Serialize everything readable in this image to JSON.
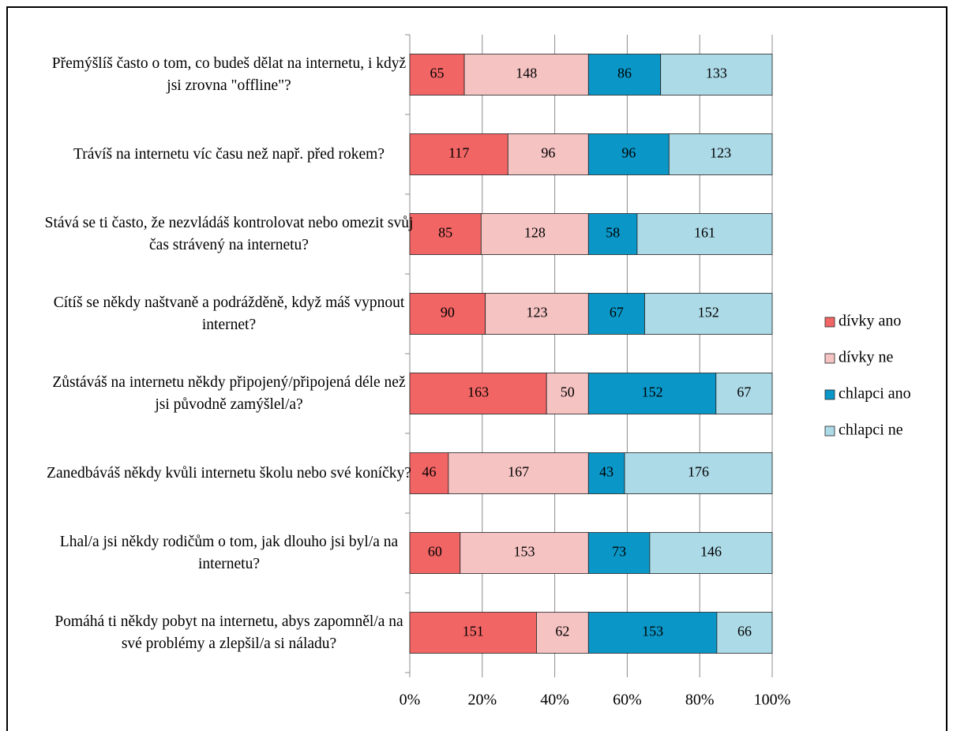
{
  "chart_data": {
    "type": "bar",
    "orientation": "horizontal",
    "stacked": "percent",
    "categories": [
      "Přemýšlíš často o tom, co budeš dělat na internetu, i když jsi zrovna \"offline\"?",
      "Trávíš na internetu víc času než např. před rokem?",
      "Stává se ti často, že nezvládáš kontrolovat nebo omezit svůj čas strávený na internetu?",
      "Cítíš se někdy naštvaně a podrážděně, když máš vypnout internet?",
      "Zůstáváš na internetu někdy připojený/připojená déle než jsi původně zamýšlel/a?",
      "Zanedbáváš někdy kvůli internetu školu nebo své koníčky?",
      "Lhal/a jsi někdy rodičům o tom, jak dlouho jsi byl/a na internetu?",
      "Pomáhá ti někdy pobyt na internetu, abys zapomněl/a na své problémy a zlepšil/a si náladu?"
    ],
    "series": [
      {
        "name": "dívky ano",
        "color": "#f26565",
        "values": [
          65,
          117,
          85,
          90,
          163,
          46,
          60,
          151
        ]
      },
      {
        "name": "dívky ne",
        "color": "#f6c3c3",
        "values": [
          148,
          96,
          128,
          123,
          50,
          167,
          153,
          62
        ]
      },
      {
        "name": "chlapci ano",
        "color": "#0a97c8",
        "values": [
          86,
          96,
          58,
          67,
          152,
          43,
          73,
          153
        ]
      },
      {
        "name": "chlapci ne",
        "color": "#acdae7",
        "values": [
          133,
          123,
          161,
          152,
          67,
          176,
          146,
          66
        ]
      }
    ],
    "xlim": [
      0,
      100
    ],
    "xticks": [
      {
        "value": 0,
        "label": "0%"
      },
      {
        "value": 20,
        "label": "20%"
      },
      {
        "value": 40,
        "label": "40%"
      },
      {
        "value": 60,
        "label": "60%"
      },
      {
        "value": 80,
        "label": "80%"
      },
      {
        "value": 100,
        "label": "100%"
      }
    ],
    "grid": true,
    "legend": "right"
  }
}
